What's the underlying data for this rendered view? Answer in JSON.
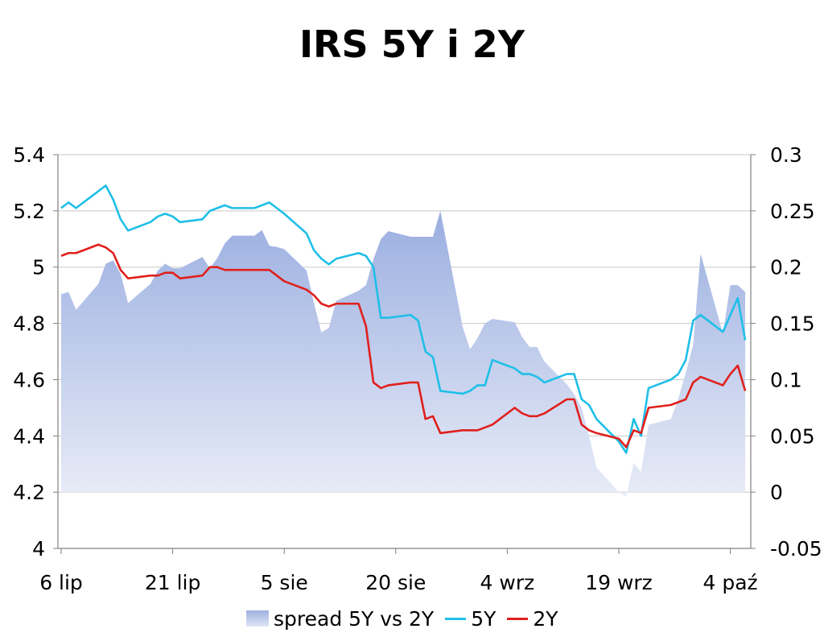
{
  "chart_data": {
    "type": "line",
    "title": "IRS 5Y i 2Y",
    "x_ticks": [
      "6 lip",
      "21 lip",
      "5 sie",
      "20 sie",
      "4 wrz",
      "19 wrz",
      "4 paź"
    ],
    "y_left": {
      "min": 4,
      "max": 5.4,
      "ticks": [
        "4",
        "4.2",
        "4.4",
        "4.6",
        "4.8",
        "5",
        "5.2",
        "5.4"
      ]
    },
    "y_right": {
      "min": -0.05,
      "max": 0.3,
      "ticks": [
        "-0.05",
        "0",
        "0.05",
        "0.1",
        "0.15",
        "0.2",
        "0.25",
        "0.3"
      ]
    },
    "grid": "horizontal",
    "legend_position": "bottom",
    "x_days": [
      0,
      1,
      2,
      5,
      6,
      7,
      8,
      9,
      12,
      13,
      14,
      15,
      16,
      19,
      20,
      21,
      22,
      23,
      26,
      27,
      28,
      29,
      30,
      33,
      34,
      35,
      36,
      37,
      40,
      41,
      42,
      43,
      44,
      47,
      48,
      49,
      50,
      51,
      54,
      55,
      56,
      57,
      58,
      61,
      62,
      63,
      64,
      65,
      68,
      69,
      70,
      71,
      72,
      75,
      76,
      77,
      78,
      79,
      82,
      83,
      84,
      85,
      86,
      89,
      90,
      91,
      92
    ],
    "series": [
      {
        "name": "spread 5Y vs 2Y",
        "axis": "right",
        "color": "#a7b8e2",
        "values": [
          0.176,
          0.178,
          0.162,
          0.185,
          0.203,
          0.206,
          0.194,
          0.168,
          0.185,
          0.197,
          0.203,
          0.199,
          0.199,
          0.209,
          0.199,
          0.208,
          0.221,
          0.228,
          0.228,
          0.233,
          0.219,
          0.218,
          0.216,
          0.197,
          0.168,
          0.142,
          0.146,
          0.17,
          0.179,
          0.184,
          0.207,
          0.225,
          0.232,
          0.227,
          0.227,
          0.227,
          0.227,
          0.25,
          0.147,
          0.127,
          0.137,
          0.15,
          0.154,
          0.151,
          0.138,
          0.129,
          0.129,
          0.116,
          0.096,
          0.087,
          0.075,
          0.05,
          0.022,
          0.0,
          -0.004,
          0.026,
          0.018,
          0.06,
          0.065,
          0.083,
          0.106,
          0.131,
          0.212,
          0.141,
          0.184,
          0.184,
          0.178
        ]
      },
      {
        "name": "5Y",
        "axis": "left",
        "color": "#1fbfe8",
        "values": [
          5.21,
          5.23,
          5.21,
          5.27,
          5.29,
          5.24,
          5.17,
          5.13,
          5.16,
          5.18,
          5.19,
          5.18,
          5.16,
          5.17,
          5.2,
          5.21,
          5.22,
          5.21,
          5.21,
          5.22,
          5.23,
          5.21,
          5.19,
          5.12,
          5.06,
          5.03,
          5.01,
          5.03,
          5.05,
          5.04,
          5.0,
          4.82,
          4.82,
          4.83,
          4.81,
          4.7,
          4.68,
          4.56,
          4.55,
          4.56,
          4.58,
          4.58,
          4.67,
          4.64,
          4.62,
          4.62,
          4.61,
          4.59,
          4.62,
          4.62,
          4.53,
          4.51,
          4.46,
          4.38,
          4.34,
          4.46,
          4.4,
          4.57,
          4.6,
          4.62,
          4.67,
          4.81,
          4.83,
          4.77,
          4.83,
          4.89,
          4.74
        ]
      },
      {
        "name": "2Y",
        "axis": "left",
        "color": "#e0201c",
        "values": [
          5.04,
          5.05,
          5.05,
          5.08,
          5.07,
          5.05,
          4.99,
          4.96,
          4.97,
          4.97,
          4.98,
          4.98,
          4.96,
          4.97,
          5.0,
          5.0,
          4.99,
          4.99,
          4.99,
          4.99,
          4.99,
          4.97,
          4.95,
          4.92,
          4.9,
          4.87,
          4.86,
          4.87,
          4.87,
          4.79,
          4.59,
          4.57,
          4.58,
          4.59,
          4.59,
          4.46,
          4.47,
          4.41,
          4.42,
          4.42,
          4.42,
          4.43,
          4.44,
          4.5,
          4.48,
          4.47,
          4.47,
          4.48,
          4.53,
          4.53,
          4.44,
          4.42,
          4.41,
          4.39,
          4.36,
          4.42,
          4.41,
          4.5,
          4.51,
          4.52,
          4.53,
          4.59,
          4.61,
          4.58,
          4.62,
          4.65,
          4.56
        ]
      }
    ]
  }
}
